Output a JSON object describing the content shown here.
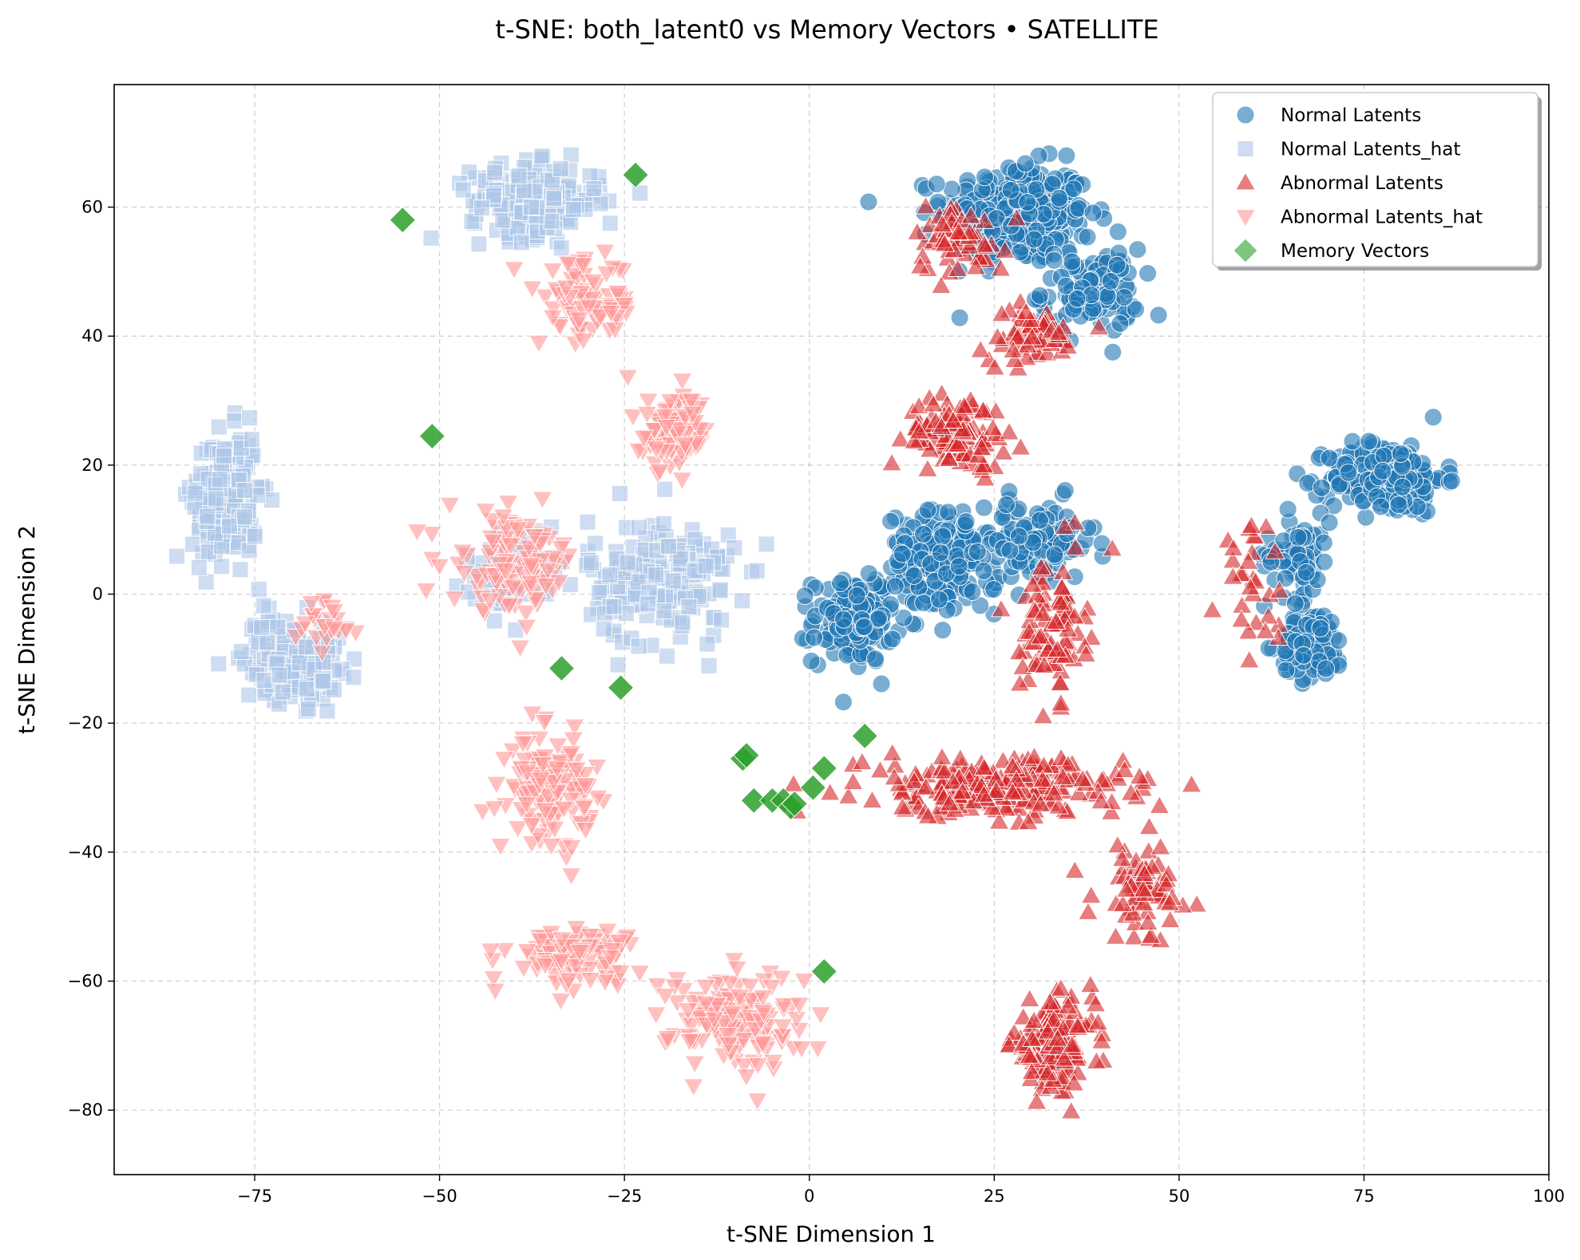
{
  "chart_data": {
    "type": "scatter",
    "title": "t-SNE: both_latent0 vs Memory Vectors • SATELLITE",
    "xlabel": "t-SNE Dimension 1",
    "ylabel": "t-SNE Dimension 2",
    "xlim": [
      -94,
      100
    ],
    "ylim": [
      -90,
      79
    ],
    "xticks": [
      -75,
      -50,
      -25,
      0,
      25,
      50,
      75,
      100
    ],
    "yticks": [
      -80,
      -60,
      -40,
      -20,
      0,
      20,
      40,
      60
    ],
    "xtick_labels": [
      "−75",
      "−50",
      "−25",
      "0",
      "25",
      "50",
      "75",
      "100"
    ],
    "ytick_labels": [
      "−80",
      "−60",
      "−40",
      "−20",
      "0",
      "20",
      "40",
      "60"
    ],
    "grid": true,
    "legend_position": "top-right",
    "series": [
      {
        "name": "Normal Latents",
        "marker": "circle",
        "color": "#1f77b4",
        "clusters": [
          {
            "center": [
              28,
              59
            ],
            "spread": [
              9,
              7
            ],
            "count": 320
          },
          {
            "center": [
              38,
              47
            ],
            "spread": [
              6,
              6
            ],
            "count": 110
          },
          {
            "center": [
              18,
              5
            ],
            "spread": [
              7,
              7
            ],
            "count": 170
          },
          {
            "center": [
              6,
              -4
            ],
            "spread": [
              5,
              6
            ],
            "count": 160
          },
          {
            "center": [
              31,
              8
            ],
            "spread": [
              7,
              6
            ],
            "count": 90
          },
          {
            "center": [
              78,
              18
            ],
            "spread": [
              7,
              5
            ],
            "count": 220
          },
          {
            "center": [
              68,
              -8
            ],
            "spread": [
              4,
              5
            ],
            "count": 90
          },
          {
            "center": [
              66,
              6
            ],
            "spread": [
              4,
              6
            ],
            "count": 70
          }
        ]
      },
      {
        "name": "Normal Latents_hat",
        "marker": "square",
        "color": "#aec7e8",
        "clusters": [
          {
            "center": [
              -37,
              61
            ],
            "spread": [
              8,
              5
            ],
            "count": 200
          },
          {
            "center": [
              -79,
              15
            ],
            "spread": [
              4,
              9
            ],
            "count": 200
          },
          {
            "center": [
              -70,
              -10
            ],
            "spread": [
              6,
              6
            ],
            "count": 150
          },
          {
            "center": [
              -20,
              2
            ],
            "spread": [
              9,
              9
            ],
            "count": 180
          },
          {
            "center": [
              -40,
              4
            ],
            "spread": [
              6,
              6
            ],
            "count": 60
          }
        ]
      },
      {
        "name": "Abnormal Latents",
        "marker": "triangle-up",
        "color": "#d62728",
        "clusters": [
          {
            "center": [
              20,
              55
            ],
            "spread": [
              6,
              5
            ],
            "count": 60
          },
          {
            "center": [
              30,
              40
            ],
            "spread": [
              6,
              4
            ],
            "count": 60
          },
          {
            "center": [
              20,
              25
            ],
            "spread": [
              6,
              5
            ],
            "count": 120
          },
          {
            "center": [
              33,
              -5
            ],
            "spread": [
              4,
              10
            ],
            "count": 90
          },
          {
            "center": [
              25,
              -30
            ],
            "spread": [
              16,
              4
            ],
            "count": 260
          },
          {
            "center": [
              45,
              -46
            ],
            "spread": [
              6,
              7
            ],
            "count": 70
          },
          {
            "center": [
              33,
              -70
            ],
            "spread": [
              5,
              6
            ],
            "count": 170
          },
          {
            "center": [
              60,
              2
            ],
            "spread": [
              4,
              8
            ],
            "count": 30
          }
        ]
      },
      {
        "name": "Abnormal Latents_hat",
        "marker": "triangle-down",
        "color": "#ff9896",
        "clusters": [
          {
            "center": [
              -30,
              45
            ],
            "spread": [
              6,
              6
            ],
            "count": 90
          },
          {
            "center": [
              -18,
              25
            ],
            "spread": [
              4,
              5
            ],
            "count": 100
          },
          {
            "center": [
              -40,
              5
            ],
            "spread": [
              8,
              7
            ],
            "count": 120
          },
          {
            "center": [
              -35,
              -30
            ],
            "spread": [
              5,
              7
            ],
            "count": 140
          },
          {
            "center": [
              -32,
              -56
            ],
            "spread": [
              8,
              4
            ],
            "count": 100
          },
          {
            "center": [
              -10,
              -66
            ],
            "spread": [
              8,
              7
            ],
            "count": 150
          },
          {
            "center": [
              -65,
              -5
            ],
            "spread": [
              4,
              4
            ],
            "count": 25
          }
        ]
      }
    ],
    "memory_vectors": {
      "name": "Memory Vectors",
      "marker": "diamond",
      "color": "#2ca02c",
      "points": [
        [
          -55,
          58
        ],
        [
          -23.5,
          65
        ],
        [
          -51,
          24.5
        ],
        [
          -33.5,
          -11.5
        ],
        [
          -25.5,
          -14.5
        ],
        [
          7.5,
          -22
        ],
        [
          -9,
          -25.5
        ],
        [
          -8.5,
          -25
        ],
        [
          2,
          -27
        ],
        [
          0.5,
          -30
        ],
        [
          -7.5,
          -32
        ],
        [
          -5,
          -32
        ],
        [
          -3.5,
          -32
        ],
        [
          -2.5,
          -33
        ],
        [
          -2,
          -32.5
        ],
        [
          2,
          -58.5
        ]
      ]
    }
  }
}
